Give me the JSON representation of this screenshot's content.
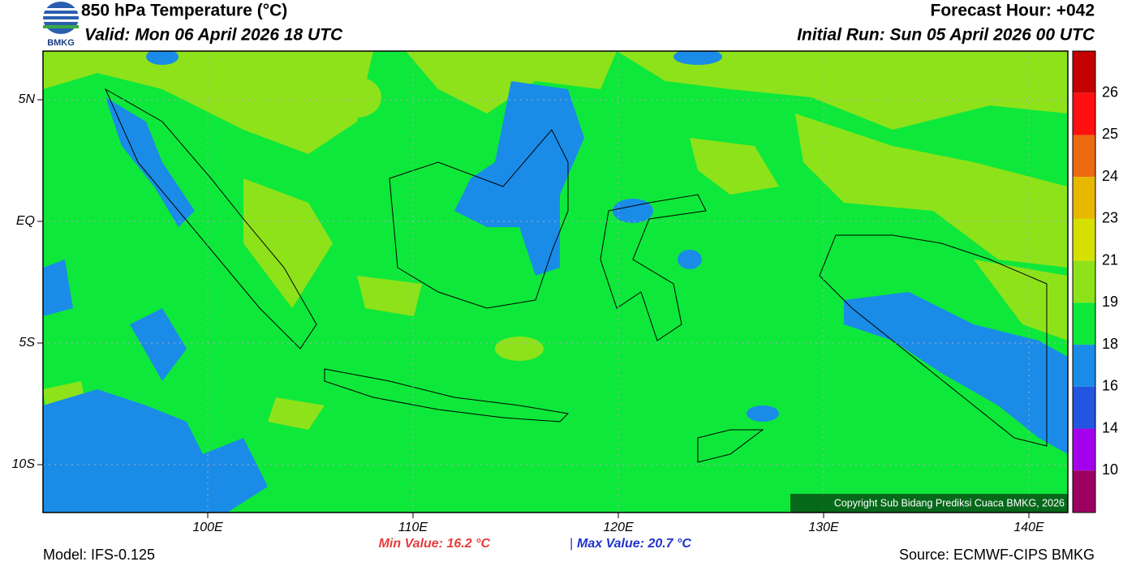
{
  "header": {
    "title": "850 hPa Temperature (°C)",
    "valid": "Valid: Mon 06 April 2026 18 UTC",
    "forecast_hour": "Forecast Hour: +042",
    "initial_run": "Initial Run: Sun 05 April 2026 00 UTC",
    "logo_text": "BMKG"
  },
  "map": {
    "lat_labels": [
      "5N",
      "EQ",
      "5S",
      "10S"
    ],
    "lon_labels": [
      "100E",
      "110E",
      "120E",
      "130E",
      "140E"
    ],
    "copyright": "Copyright Sub Bidang Prediksi Cuaca BMKG, 2026"
  },
  "colorbar": {
    "labels": [
      "26",
      "25",
      "24",
      "23",
      "21",
      "19",
      "18",
      "16",
      "14",
      "10"
    ],
    "colors": [
      "#c40000",
      "#ff1010",
      "#ec6a12",
      "#e8b800",
      "#d6e000",
      "#8ee21a",
      "#0ee83a",
      "#1a8ce8",
      "#2356e0",
      "#a400ee",
      "#9c0060"
    ]
  },
  "footer": {
    "min_value": "Min Value: 16.2 °C",
    "separator": "|",
    "max_value": "Max Value: 20.7 °C",
    "model": "Model: IFS-0.125",
    "source": "Source: ECMWF-CIPS BMKG"
  }
}
